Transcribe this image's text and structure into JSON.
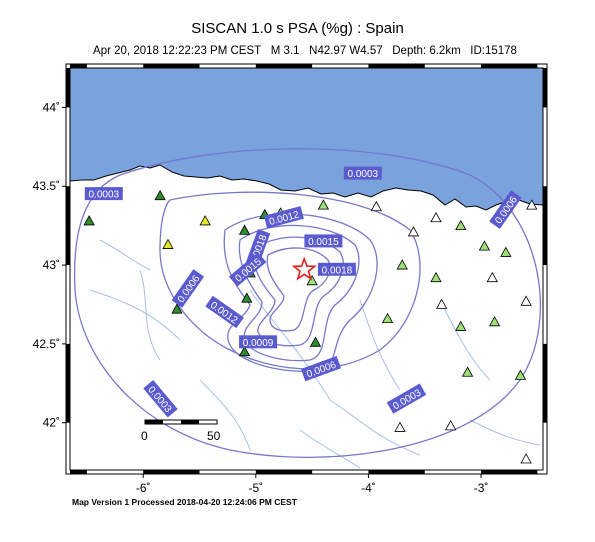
{
  "title": "SISCAN 1.0 s PSA (%g) : Spain",
  "event": {
    "date": "Apr 20, 2018 12:22:23 PM CEST",
    "magnitude": "M 3.1",
    "location": "N42.97 W4.57",
    "depth": "Depth: 6.2km",
    "id": "ID:15178"
  },
  "footer": "Map Version 1 Processed 2018-04-20 12:24:06 PM CEST",
  "map": {
    "lon_range": [
      -6.65,
      -2.45
    ],
    "lat_range": [
      41.7,
      44.25
    ],
    "lon_ticks": [
      {
        "value": -6,
        "label": "-6˚"
      },
      {
        "value": -5,
        "label": "-5˚"
      },
      {
        "value": -4,
        "label": "-4˚"
      },
      {
        "value": -3,
        "label": "-3˚"
      }
    ],
    "lat_ticks": [
      {
        "value": 44,
        "label": "44˚"
      },
      {
        "value": 43.5,
        "label": "43.5˚"
      },
      {
        "value": 43,
        "label": "43˚"
      },
      {
        "value": 42.5,
        "label": "42.5˚"
      },
      {
        "value": 42,
        "label": "42˚"
      }
    ],
    "sea_color": "#7aa2dc",
    "contour_color": "#7777cc",
    "epicenter": {
      "lon": -4.57,
      "lat": 42.97,
      "symbol": "star-icon",
      "color": "#e02020"
    },
    "contour_labels": [
      {
        "text": "0.0003",
        "lon": -6.35,
        "lat": 43.45,
        "angle": 0
      },
      {
        "text": "0.0003",
        "lon": -4.05,
        "lat": 43.58,
        "angle": 0
      },
      {
        "text": "0.0012",
        "lon": -4.75,
        "lat": 43.3,
        "angle": -15
      },
      {
        "text": "0.0015",
        "lon": -4.4,
        "lat": 43.15,
        "angle": 0
      },
      {
        "text": "0.0018",
        "lon": -4.98,
        "lat": 43.1,
        "angle": -70
      },
      {
        "text": "0.0015",
        "lon": -5.07,
        "lat": 42.97,
        "angle": -40
      },
      {
        "text": "0.0018",
        "lon": -4.28,
        "lat": 42.97,
        "angle": 0
      },
      {
        "text": "0.0006",
        "lon": -5.6,
        "lat": 42.85,
        "angle": -55
      },
      {
        "text": "0.0012",
        "lon": -5.28,
        "lat": 42.7,
        "angle": 35
      },
      {
        "text": "0.0009",
        "lon": -4.98,
        "lat": 42.51,
        "angle": 0
      },
      {
        "text": "0.0006",
        "lon": -4.42,
        "lat": 42.34,
        "angle": -20
      },
      {
        "text": "0.0006",
        "lon": -2.78,
        "lat": 43.35,
        "angle": -55
      },
      {
        "text": "0.0003",
        "lon": -3.66,
        "lat": 42.15,
        "angle": -30
      },
      {
        "text": "0.0003",
        "lon": -5.85,
        "lat": 42.15,
        "angle": 50
      }
    ],
    "stations": [
      {
        "lon": -6.48,
        "lat": 43.28,
        "color": "#2e8b2e"
      },
      {
        "lon": -5.85,
        "lat": 43.44,
        "color": "#2e8b2e"
      },
      {
        "lon": -5.45,
        "lat": 43.28,
        "color": "#e6e62e"
      },
      {
        "lon": -5.78,
        "lat": 43.13,
        "color": "#e6e62e"
      },
      {
        "lon": -5.1,
        "lat": 43.22,
        "color": "#2e8b2e"
      },
      {
        "lon": -4.92,
        "lat": 43.32,
        "color": "#2e8b2e"
      },
      {
        "lon": -4.78,
        "lat": 43.33,
        "color": "#9ee07a"
      },
      {
        "lon": -4.4,
        "lat": 43.38,
        "color": "#9ee07a"
      },
      {
        "lon": -5.05,
        "lat": 42.95,
        "color": "#2e8b2e"
      },
      {
        "lon": -5.08,
        "lat": 42.79,
        "color": "#2e8b2e"
      },
      {
        "lon": -5.7,
        "lat": 42.72,
        "color": "#2e8b2e"
      },
      {
        "lon": -5.1,
        "lat": 42.45,
        "color": "#2e8b2e"
      },
      {
        "lon": -4.47,
        "lat": 42.51,
        "color": "#2e8b2e"
      },
      {
        "lon": -4.5,
        "lat": 42.9,
        "color": "#9ee07a"
      },
      {
        "lon": -3.93,
        "lat": 43.37,
        "color": "#ffffff"
      },
      {
        "lon": -3.6,
        "lat": 43.21,
        "color": "#ffffff"
      },
      {
        "lon": -3.4,
        "lat": 43.3,
        "color": "#ffffff"
      },
      {
        "lon": -3.18,
        "lat": 43.25,
        "color": "#9ee07a"
      },
      {
        "lon": -2.97,
        "lat": 43.12,
        "color": "#9ee07a"
      },
      {
        "lon": -2.78,
        "lat": 43.08,
        "color": "#9ee07a"
      },
      {
        "lon": -2.55,
        "lat": 43.38,
        "color": "#ffffff"
      },
      {
        "lon": -3.7,
        "lat": 43.0,
        "color": "#9ee07a"
      },
      {
        "lon": -3.4,
        "lat": 42.92,
        "color": "#9ee07a"
      },
      {
        "lon": -2.9,
        "lat": 42.92,
        "color": "#ffffff"
      },
      {
        "lon": -3.35,
        "lat": 42.75,
        "color": "#ffffff"
      },
      {
        "lon": -3.83,
        "lat": 42.66,
        "color": "#9ee07a"
      },
      {
        "lon": -3.18,
        "lat": 42.61,
        "color": "#9ee07a"
      },
      {
        "lon": -2.88,
        "lat": 42.64,
        "color": "#9ee07a"
      },
      {
        "lon": -2.6,
        "lat": 42.77,
        "color": "#ffffff"
      },
      {
        "lon": -3.12,
        "lat": 42.32,
        "color": "#9ee07a"
      },
      {
        "lon": -2.65,
        "lat": 42.3,
        "color": "#9ee07a"
      },
      {
        "lon": -3.72,
        "lat": 41.97,
        "color": "#ffffff"
      },
      {
        "lon": -3.27,
        "lat": 41.98,
        "color": "#ffffff"
      },
      {
        "lon": -2.6,
        "lat": 41.77,
        "color": "#ffffff"
      }
    ],
    "scale_bar": {
      "min_label": "0",
      "max_label": "50"
    }
  }
}
